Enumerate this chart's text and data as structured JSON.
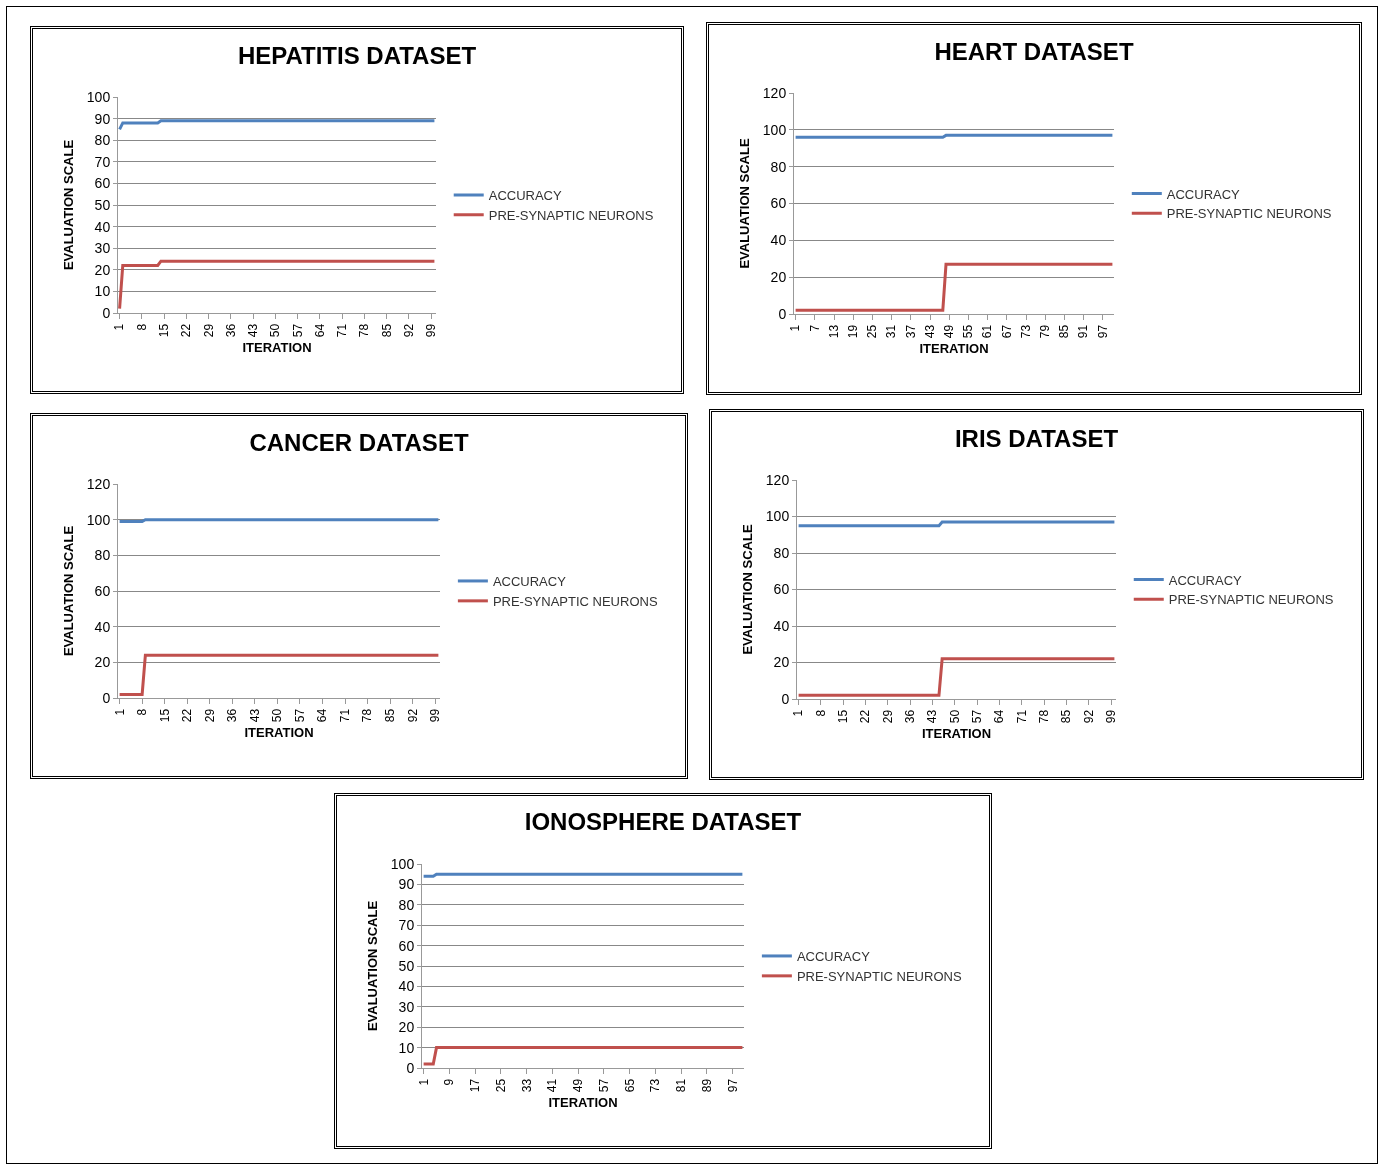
{
  "chart_data": [
    {
      "type": "line",
      "title": "HEPATITIS DATASET",
      "xlabel": "ITERATION",
      "ylabel": "EVALUATION SCALE",
      "xlim": [
        0.5,
        100.5
      ],
      "xticks": [
        1,
        8,
        15,
        22,
        29,
        36,
        43,
        50,
        57,
        64,
        71,
        78,
        85,
        92,
        99
      ],
      "ylim": [
        0,
        100
      ],
      "yticks": [
        0,
        10,
        20,
        30,
        40,
        50,
        60,
        70,
        80,
        90,
        100
      ],
      "grid": "y",
      "legend": "right",
      "marker": "none",
      "line_style": "solid",
      "series": [
        {
          "name": "ACCURACY",
          "color": "#4f81bd",
          "x": [
            1,
            2,
            13,
            14,
            100
          ],
          "values": [
            85,
            88,
            88,
            89,
            89
          ]
        },
        {
          "name": "PRE-SYNAPTIC NEURONS",
          "color": "#c0504d",
          "x": [
            1,
            2,
            13,
            14,
            100
          ],
          "values": [
            2,
            22,
            22,
            24,
            24
          ]
        }
      ]
    },
    {
      "type": "line",
      "title": "HEART DATASET",
      "xlabel": "ITERATION",
      "ylabel": "EVALUATION SCALE",
      "xlim": [
        0.5,
        100.5
      ],
      "xticks": [
        1,
        7,
        13,
        19,
        25,
        31,
        37,
        43,
        49,
        55,
        61,
        67,
        73,
        79,
        85,
        91,
        97
      ],
      "ylim": [
        0,
        120
      ],
      "yticks": [
        0,
        20,
        40,
        60,
        80,
        100,
        120
      ],
      "grid": "y",
      "legend": "right",
      "marker": "none",
      "line_style": "solid",
      "series": [
        {
          "name": "ACCURACY",
          "color": "#4f81bd",
          "x": [
            1,
            47,
            48,
            100
          ],
          "values": [
            96,
            96,
            97,
            97
          ]
        },
        {
          "name": "PRE-SYNAPTIC NEURONS",
          "color": "#c0504d",
          "x": [
            1,
            47,
            48,
            100
          ],
          "values": [
            2,
            2,
            27,
            27
          ]
        }
      ]
    },
    {
      "type": "line",
      "title": "CANCER DATASET",
      "xlabel": "ITERATION",
      "ylabel": "EVALUATION SCALE",
      "xlim": [
        0.5,
        100.5
      ],
      "xticks": [
        1,
        8,
        15,
        22,
        29,
        36,
        43,
        50,
        57,
        64,
        71,
        78,
        85,
        92,
        99
      ],
      "ylim": [
        0,
        120
      ],
      "yticks": [
        0,
        20,
        40,
        60,
        80,
        100,
        120
      ],
      "grid": "y",
      "legend": "right",
      "marker": "none",
      "line_style": "solid",
      "series": [
        {
          "name": "ACCURACY",
          "color": "#4f81bd",
          "x": [
            1,
            8,
            9,
            100
          ],
          "values": [
            99,
            99,
            100,
            100
          ]
        },
        {
          "name": "PRE-SYNAPTIC NEURONS",
          "color": "#c0504d",
          "x": [
            1,
            8,
            9,
            100
          ],
          "values": [
            2,
            2,
            24,
            24
          ]
        }
      ]
    },
    {
      "type": "line",
      "title": "IRIS DATASET",
      "xlabel": "ITERATION",
      "ylabel": "EVALUATION SCALE",
      "xlim": [
        0.5,
        100.5
      ],
      "xticks": [
        1,
        8,
        15,
        22,
        29,
        36,
        43,
        50,
        57,
        64,
        71,
        78,
        85,
        92,
        99
      ],
      "ylim": [
        0,
        120
      ],
      "yticks": [
        0,
        20,
        40,
        60,
        80,
        100,
        120
      ],
      "grid": "y",
      "legend": "right",
      "marker": "none",
      "line_style": "solid",
      "series": [
        {
          "name": "ACCURACY",
          "color": "#4f81bd",
          "x": [
            1,
            45,
            46,
            100
          ],
          "values": [
            95,
            95,
            97,
            97
          ]
        },
        {
          "name": "PRE-SYNAPTIC NEURONS",
          "color": "#c0504d",
          "x": [
            1,
            45,
            46,
            100
          ],
          "values": [
            2,
            2,
            22,
            22
          ]
        }
      ]
    },
    {
      "type": "line",
      "title": "IONOSPHERE DATASET",
      "xlabel": "ITERATION",
      "ylabel": "EVALUATION SCALE",
      "xlim": [
        0.5,
        100.5
      ],
      "xticks": [
        1,
        9,
        17,
        25,
        33,
        41,
        49,
        57,
        65,
        73,
        81,
        89,
        97
      ],
      "ylim": [
        0,
        100
      ],
      "yticks": [
        0,
        10,
        20,
        30,
        40,
        50,
        60,
        70,
        80,
        90,
        100
      ],
      "grid": "y",
      "legend": "right",
      "marker": "none",
      "line_style": "solid",
      "series": [
        {
          "name": "ACCURACY",
          "color": "#4f81bd",
          "x": [
            1,
            4,
            5,
            100
          ],
          "values": [
            94,
            94,
            95,
            95
          ]
        },
        {
          "name": "PRE-SYNAPTIC NEURONS",
          "color": "#c0504d",
          "x": [
            1,
            4,
            5,
            100
          ],
          "values": [
            2,
            2,
            10,
            10
          ]
        }
      ]
    }
  ]
}
